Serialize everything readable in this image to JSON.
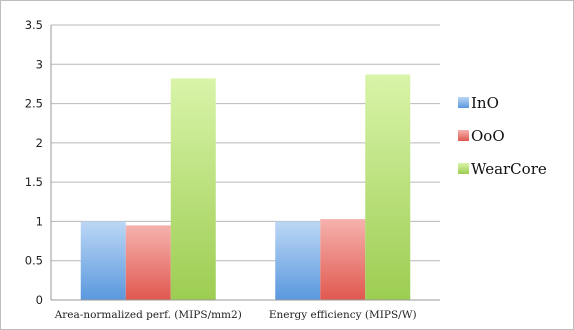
{
  "chart_data": {
    "type": "bar",
    "categories": [
      "Area-normalized perf. (MIPS/mm2)",
      "Energy efficiency (MIPS/W)"
    ],
    "series": [
      {
        "name": "InO",
        "values": [
          1.0,
          1.0
        ],
        "color_top": "#bcd7f5",
        "color_bottom": "#5a98de"
      },
      {
        "name": "OoO",
        "values": [
          0.95,
          1.03
        ],
        "color_top": "#f6b2ae",
        "color_bottom": "#e0584f"
      },
      {
        "name": "WearCore",
        "values": [
          2.82,
          2.87
        ],
        "color_top": "#d9f4a9",
        "color_bottom": "#9ccd52"
      }
    ],
    "ylim": [
      0,
      3.5
    ],
    "yticks": [
      "0",
      "0.5",
      "1",
      "1.5",
      "2",
      "2.5",
      "3",
      "3.5"
    ],
    "ytick_values": [
      0,
      0.5,
      1,
      1.5,
      2,
      2.5,
      3,
      3.5
    ],
    "grid": true,
    "legend_position": "right",
    "title": "",
    "xlabel": "",
    "ylabel": ""
  }
}
